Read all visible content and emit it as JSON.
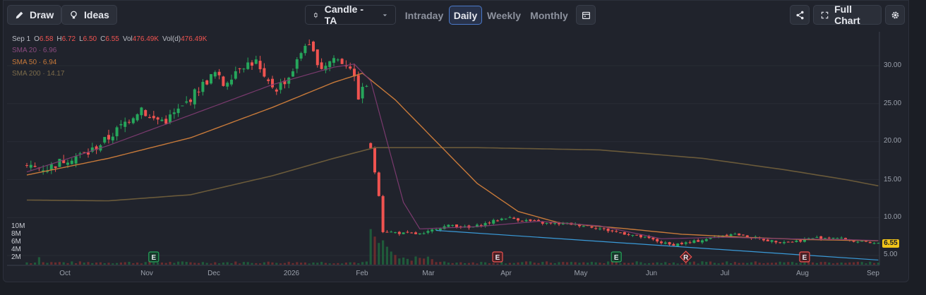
{
  "toolbar": {
    "draw_label": "Draw",
    "ideas_label": "Ideas",
    "chart_type_label": "Candle - TA",
    "tabs": [
      "Intraday",
      "Daily",
      "Weekly",
      "Monthly"
    ],
    "active_tab": "Daily",
    "full_chart_label": "Full Chart"
  },
  "legend": {
    "date": "Sep 1",
    "open_label": "O",
    "open": "6.58",
    "high_label": "H",
    "high": "6.72",
    "low_label": "L",
    "low": "6.50",
    "close_label": "C",
    "close": "6.55",
    "vol_label": "Vol",
    "vol": "476.49K",
    "vold_label": "Vol(d)",
    "vold": "476.49K",
    "sma20": "SMA 20 · 6.96",
    "sma50": "SMA 50 · 6.94",
    "sma200": "SMA 200 · 14.17"
  },
  "colors": {
    "up": "#26a65b",
    "down": "#ef5350",
    "sma20": "#7a3a6e",
    "sma50": "#c87a3a",
    "sma200": "#6a5a3a",
    "trendline": "#3a9bd9",
    "price_tag": "#f0c419",
    "active_tab": "#4b79c9"
  },
  "icons": {
    "draw": "pencil-icon",
    "ideas": "lightbulb-icon",
    "chart_type": "candle-icon",
    "calendar": "calendar-icon",
    "share": "share-icon",
    "full_chart": "expand-icon",
    "settings": "gear-icon"
  },
  "chart_data": {
    "type": "candlestick",
    "ylim": [
      3.5,
      34.8
    ],
    "y_ticks": [
      "30.00",
      "25.00",
      "20.00",
      "15.00",
      "10.00",
      "5.00"
    ],
    "volume_ticks": [
      "10M",
      "8M",
      "6M",
      "4M",
      "2M"
    ],
    "x_ticks": [
      "Oct",
      "Nov",
      "Dec",
      "2026",
      "Feb",
      "Mar",
      "Apr",
      "May",
      "Jun",
      "Jul",
      "Aug",
      "Sep"
    ],
    "last_price": "6.55",
    "close_anchors": [
      [
        0,
        16.6
      ],
      [
        5,
        16.5
      ],
      [
        10,
        17.8
      ],
      [
        15,
        18.5
      ],
      [
        20,
        20.5
      ],
      [
        24,
        22.5
      ],
      [
        28,
        24.5
      ],
      [
        30,
        23.0
      ],
      [
        34,
        22.8
      ],
      [
        38,
        24.5
      ],
      [
        42,
        27.0
      ],
      [
        46,
        29.0
      ],
      [
        48,
        27.5
      ],
      [
        52,
        30.0
      ],
      [
        56,
        30.5
      ],
      [
        58,
        28.0
      ],
      [
        61,
        27.0
      ],
      [
        64,
        28.5
      ],
      [
        66,
        30.5
      ],
      [
        68,
        33.0
      ],
      [
        70,
        31.5
      ],
      [
        72,
        29.8
      ],
      [
        75,
        31.0
      ],
      [
        77,
        30.5
      ],
      [
        79,
        30.0
      ],
      [
        81,
        26.0
      ],
      [
        83,
        27.5
      ],
      [
        84,
        19.0
      ],
      [
        85,
        16.0
      ],
      [
        86,
        13.0
      ],
      [
        87,
        8.2
      ],
      [
        92,
        7.9
      ],
      [
        97,
        7.8
      ],
      [
        100,
        8.6
      ],
      [
        104,
        9.0
      ],
      [
        108,
        8.6
      ],
      [
        112,
        9.2
      ],
      [
        117,
        10.0
      ],
      [
        122,
        9.6
      ],
      [
        127,
        9.2
      ],
      [
        132,
        9.2
      ],
      [
        137,
        8.9
      ],
      [
        142,
        8.3
      ],
      [
        147,
        7.8
      ],
      [
        152,
        7.2
      ],
      [
        157,
        6.4
      ],
      [
        162,
        6.7
      ],
      [
        167,
        7.3
      ],
      [
        172,
        7.9
      ],
      [
        177,
        7.4
      ],
      [
        182,
        6.9
      ],
      [
        187,
        6.8
      ],
      [
        192,
        7.3
      ],
      [
        197,
        7.4
      ],
      [
        202,
        6.9
      ],
      [
        206,
        6.6
      ],
      [
        208,
        6.55
      ]
    ],
    "sma20_points": [
      [
        0,
        16.0
      ],
      [
        20,
        19.5
      ],
      [
        40,
        23.5
      ],
      [
        60,
        27.5
      ],
      [
        75,
        29.8
      ],
      [
        80,
        30.2
      ],
      [
        84,
        28.0
      ],
      [
        88,
        20.0
      ],
      [
        92,
        12.0
      ],
      [
        96,
        8.5
      ],
      [
        110,
        8.8
      ],
      [
        125,
        9.5
      ],
      [
        140,
        8.9
      ],
      [
        155,
        7.2
      ],
      [
        170,
        7.4
      ],
      [
        185,
        7.2
      ],
      [
        200,
        7.1
      ],
      [
        208,
        6.96
      ]
    ],
    "sma50_points": [
      [
        0,
        15.6
      ],
      [
        20,
        17.8
      ],
      [
        40,
        20.5
      ],
      [
        60,
        24.5
      ],
      [
        75,
        27.8
      ],
      [
        82,
        29.0
      ],
      [
        90,
        25.5
      ],
      [
        100,
        20.0
      ],
      [
        110,
        14.5
      ],
      [
        120,
        10.8
      ],
      [
        130,
        9.3
      ],
      [
        145,
        8.6
      ],
      [
        160,
        7.8
      ],
      [
        175,
        7.4
      ],
      [
        190,
        7.1
      ],
      [
        208,
        6.94
      ]
    ],
    "sma200_points": [
      [
        0,
        12.3
      ],
      [
        20,
        12.2
      ],
      [
        40,
        13.0
      ],
      [
        60,
        15.5
      ],
      [
        75,
        17.8
      ],
      [
        85,
        19.2
      ],
      [
        110,
        19.2
      ],
      [
        140,
        18.9
      ],
      [
        165,
        17.8
      ],
      [
        185,
        16.3
      ],
      [
        200,
        15.0
      ],
      [
        208,
        14.17
      ]
    ],
    "trendline": [
      [
        100,
        8.3
      ],
      [
        208,
        4.4
      ]
    ],
    "events": [
      {
        "label": "E",
        "i": 31,
        "type": "earnings-positive"
      },
      {
        "label": "E",
        "i": 115,
        "type": "earnings-negative"
      },
      {
        "label": "E",
        "i": 144,
        "type": "earnings-positive"
      },
      {
        "label": "R",
        "i": 161,
        "type": "split-negative"
      },
      {
        "label": "E",
        "i": 190,
        "type": "earnings-negative"
      }
    ]
  }
}
